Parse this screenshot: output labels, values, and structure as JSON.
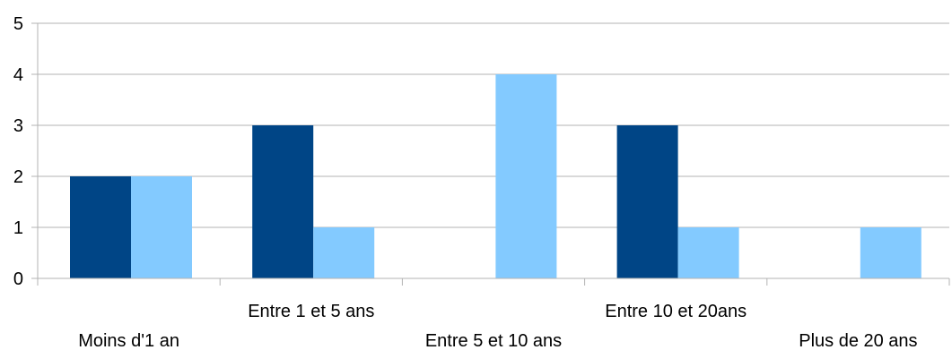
{
  "chart_data": {
    "type": "bar",
    "categories": [
      "Moins d'1 an",
      "Entre 1 et 5 ans",
      "Entre 5 et 10 ans",
      "Entre 10 et 20ans",
      "Plus de 20 ans"
    ],
    "series": [
      {
        "values": [
          2,
          3,
          0,
          3,
          0
        ],
        "color": "#004586"
      },
      {
        "values": [
          2,
          1,
          4,
          1,
          1
        ],
        "color": "#83caff"
      }
    ],
    "ylim": [
      0,
      5
    ],
    "yticks": [
      0,
      1,
      2,
      3,
      4,
      5
    ],
    "grid": true,
    "legend": "none",
    "title": "",
    "xlabel": "",
    "ylabel": ""
  }
}
